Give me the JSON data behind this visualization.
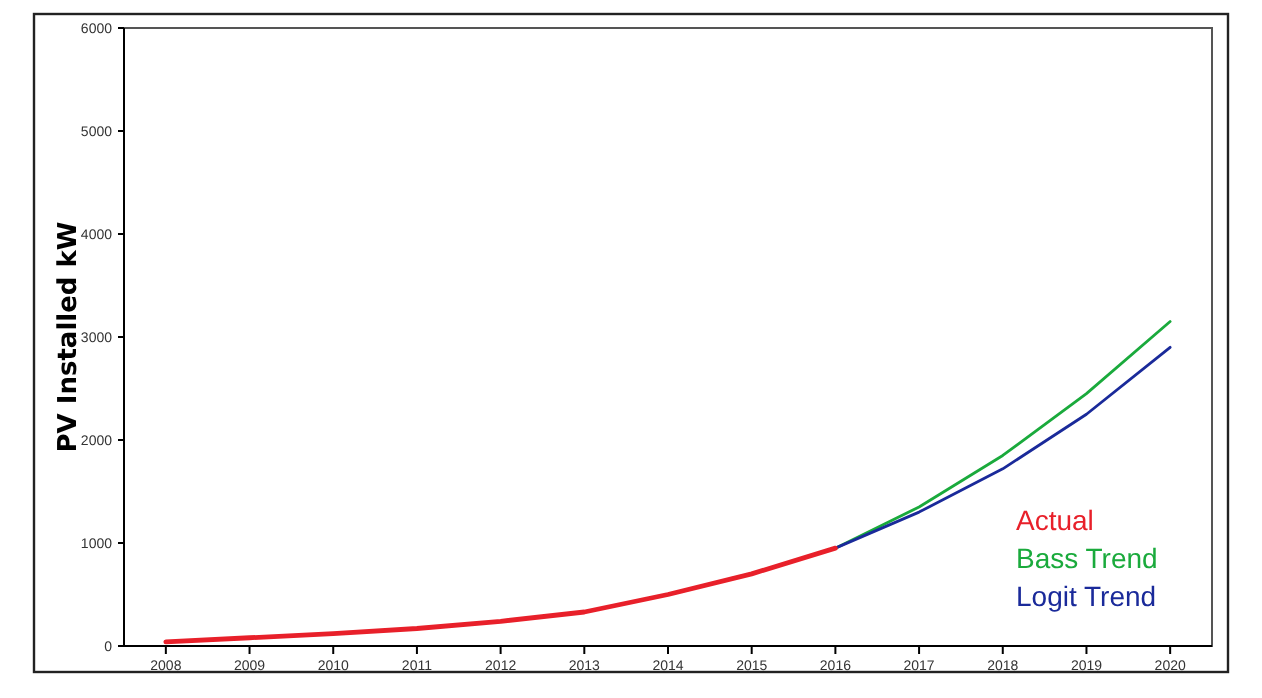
{
  "chart_data": {
    "type": "line",
    "ylabel": "PV Installed kW",
    "xlim": [
      2007.5,
      2020.5
    ],
    "ylim": [
      0,
      6000
    ],
    "yticks": [
      0,
      1000,
      2000,
      3000,
      4000,
      5000,
      6000
    ],
    "xticks": [
      2008,
      2009,
      2010,
      2011,
      2012,
      2013,
      2014,
      2015,
      2016,
      2017,
      2018,
      2019,
      2020
    ],
    "grid": false,
    "legend": "bottom right",
    "marker": "none",
    "line_style": "solid",
    "series": [
      {
        "name": "Bass Trend",
        "color": "#1aaa3c",
        "x": [
          2016,
          2017,
          2018,
          2019,
          2020
        ],
        "values": [
          950,
          1350,
          1850,
          2450,
          3150
        ]
      },
      {
        "name": "Logit Trend",
        "color": "#1a2a9a",
        "x": [
          2016,
          2017,
          2018,
          2019,
          2020
        ],
        "values": [
          950,
          1300,
          1720,
          2250,
          2900
        ]
      },
      {
        "name": "Actual",
        "color": "#e8202a",
        "x": [
          2008,
          2009,
          2010,
          2011,
          2012,
          2013,
          2014,
          2015,
          2016
        ],
        "values": [
          40,
          80,
          120,
          170,
          240,
          330,
          500,
          700,
          950
        ]
      }
    ]
  }
}
